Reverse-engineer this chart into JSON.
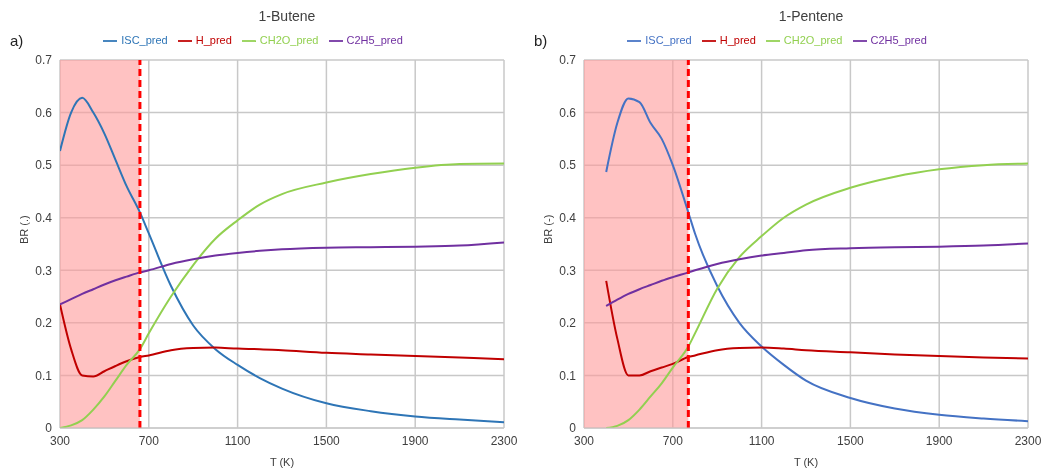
{
  "chart_data": [
    {
      "type": "line",
      "title": "1-Butene",
      "annotations": [
        "a)"
      ],
      "xlabel": "T (K)",
      "ylabel": "BR (.)",
      "x": [
        300,
        350,
        400,
        450,
        500,
        550,
        600,
        660,
        700,
        800,
        900,
        1000,
        1100,
        1200,
        1300,
        1500,
        1700,
        1900,
        2100,
        2300
      ],
      "series": [
        {
          "name": "ISC_pred",
          "color": "#2e75b6",
          "values": [
            0.527,
            0.6,
            0.628,
            0.6,
            0.56,
            0.51,
            0.46,
            0.41,
            0.37,
            0.27,
            0.195,
            0.15,
            0.12,
            0.095,
            0.075,
            0.047,
            0.032,
            0.022,
            0.016,
            0.011
          ]
        },
        {
          "name": "H_pred",
          "color": "#c00000",
          "values": [
            0.235,
            0.15,
            0.1,
            0.098,
            0.108,
            0.118,
            0.127,
            0.135,
            0.138,
            0.148,
            0.152,
            0.153,
            0.151,
            0.15,
            0.148,
            0.143,
            0.14,
            0.137,
            0.134,
            0.131
          ]
        },
        {
          "name": "CH2O_pred",
          "color": "#92d050",
          "values": [
            0,
            0.005,
            0.015,
            0.035,
            0.06,
            0.09,
            0.12,
            0.15,
            0.18,
            0.25,
            0.31,
            0.36,
            0.395,
            0.425,
            0.445,
            0.467,
            0.483,
            0.495,
            0.502,
            0.503
          ]
        },
        {
          "name": "C2H5_pred",
          "color": "#7030a0",
          "values": [
            0.235,
            0.245,
            0.255,
            0.264,
            0.273,
            0.281,
            0.288,
            0.296,
            0.3,
            0.312,
            0.321,
            0.328,
            0.333,
            0.337,
            0.34,
            0.343,
            0.344,
            0.345,
            0.347,
            0.353
          ]
        }
      ],
      "xlim": [
        300,
        2300
      ],
      "xticks": [
        300,
        700,
        1100,
        1500,
        1900,
        2300
      ],
      "ylim": [
        0,
        0.7
      ],
      "yticks": [
        0,
        0.1,
        0.2,
        0.3,
        0.4,
        0.5,
        0.6,
        0.7
      ],
      "bands": [
        {
          "axis": "x",
          "from": 300,
          "to": 660,
          "color": "#ff9999"
        }
      ],
      "ref_lines": [
        {
          "axis": "x",
          "value": 660,
          "color": "#ff0000",
          "line_style": "dashed"
        }
      ],
      "grid": true,
      "legend": "top"
    },
    {
      "type": "line",
      "title": "1-Pentene",
      "annotations": [
        "b)"
      ],
      "xlabel": "T (K)",
      "ylabel": "BR (-)",
      "x": [
        400,
        450,
        500,
        550,
        600,
        650,
        700,
        770,
        800,
        900,
        1000,
        1100,
        1200,
        1300,
        1500,
        1700,
        1900,
        2100,
        2300
      ],
      "series": [
        {
          "name": "ISC_pred",
          "color": "#4472c4",
          "values": [
            0.487,
            0.58,
            0.627,
            0.62,
            0.58,
            0.55,
            0.5,
            0.41,
            0.37,
            0.27,
            0.2,
            0.155,
            0.12,
            0.09,
            0.057,
            0.037,
            0.025,
            0.018,
            0.013
          ]
        },
        {
          "name": "H_pred",
          "color": "#c00000",
          "values": [
            0.28,
            0.17,
            0.1,
            0.1,
            0.108,
            0.115,
            0.122,
            0.135,
            0.138,
            0.148,
            0.152,
            0.153,
            0.151,
            0.148,
            0.144,
            0.14,
            0.137,
            0.134,
            0.132
          ]
        },
        {
          "name": "CH2O_pred",
          "color": "#92d050",
          "values": [
            0,
            0.004,
            0.015,
            0.035,
            0.06,
            0.085,
            0.115,
            0.155,
            0.18,
            0.265,
            0.325,
            0.365,
            0.4,
            0.425,
            0.457,
            0.478,
            0.492,
            0.5,
            0.503
          ]
        },
        {
          "name": "C2H5_pred",
          "color": "#7030a0",
          "values": [
            0.232,
            0.244,
            0.255,
            0.264,
            0.272,
            0.28,
            0.287,
            0.296,
            0.3,
            0.312,
            0.321,
            0.328,
            0.333,
            0.338,
            0.342,
            0.344,
            0.345,
            0.347,
            0.351
          ]
        }
      ],
      "xlim": [
        300,
        2300
      ],
      "xticks": [
        300,
        700,
        1100,
        1500,
        1900,
        2300
      ],
      "ylim": [
        0,
        0.7
      ],
      "yticks": [
        0,
        0.1,
        0.2,
        0.3,
        0.4,
        0.5,
        0.6,
        0.7
      ],
      "bands": [
        {
          "axis": "x",
          "from": 300,
          "to": 770,
          "color": "#ff9999"
        }
      ],
      "ref_lines": [
        {
          "axis": "x",
          "value": 770,
          "color": "#ff0000",
          "line_style": "dashed"
        }
      ],
      "grid": true,
      "legend": "top"
    }
  ]
}
